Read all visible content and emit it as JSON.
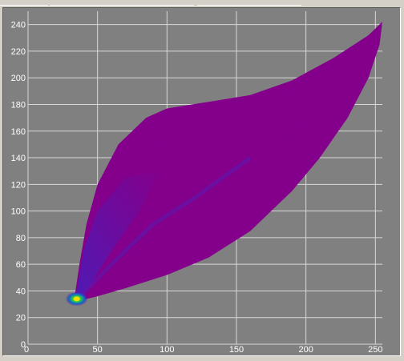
{
  "chart_data": {
    "type": "heatmap",
    "title": "",
    "xlabel": "",
    "ylabel": "",
    "xlim": [
      0,
      255
    ],
    "ylim": [
      0,
      250
    ],
    "x_ticks": [
      "0",
      "50",
      "100",
      "150",
      "200",
      "250"
    ],
    "y_ticks": [
      "0",
      "20",
      "40",
      "60",
      "80",
      "100",
      "120",
      "140",
      "160",
      "180",
      "200",
      "220",
      "240"
    ],
    "x_tick_values": [
      0,
      50,
      100,
      150,
      200,
      250
    ],
    "y_tick_values": [
      0,
      20,
      40,
      60,
      80,
      100,
      120,
      140,
      160,
      180,
      200,
      220,
      240
    ],
    "grid": true,
    "density_region": {
      "upper_edge": [
        [
          33,
          32
        ],
        [
          37,
          60
        ],
        [
          42,
          90
        ],
        [
          50,
          120
        ],
        [
          65,
          150
        ],
        [
          85,
          170
        ],
        [
          100,
          177
        ],
        [
          130,
          182
        ],
        [
          160,
          187
        ],
        [
          190,
          198
        ],
        [
          220,
          215
        ],
        [
          245,
          232
        ],
        [
          255,
          242
        ]
      ],
      "lower_edge": [
        [
          33,
          32
        ],
        [
          38,
          33
        ],
        [
          50,
          36
        ],
        [
          70,
          42
        ],
        [
          100,
          52
        ],
        [
          130,
          65
        ],
        [
          160,
          85
        ],
        [
          190,
          115
        ],
        [
          210,
          140
        ],
        [
          230,
          170
        ],
        [
          245,
          200
        ],
        [
          253,
          225
        ],
        [
          255,
          242
        ]
      ],
      "hotspot": [
        35,
        34
      ]
    },
    "colors": {
      "background": "#808080",
      "grid": "#d8d8d8",
      "low_density": "#8a0d92",
      "mid_density": "#5a1ab0",
      "high_density": "#00c8e0",
      "peak_density": "#f0e000"
    }
  }
}
